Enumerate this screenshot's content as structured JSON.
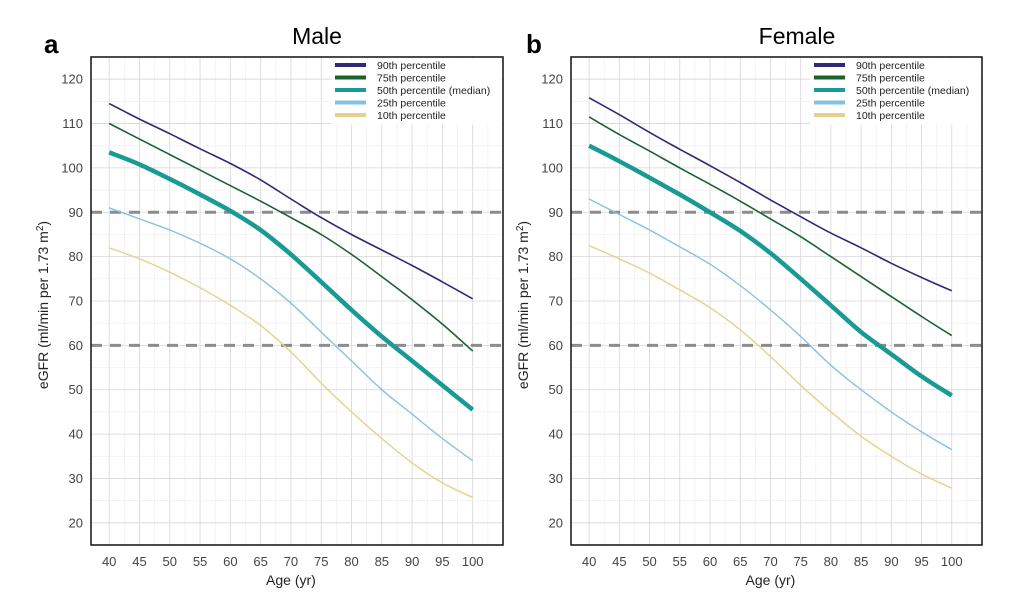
{
  "chart_data": [
    {
      "type": "line",
      "panel_letter": "a",
      "title": "Male",
      "xlabel": "Age (yr)",
      "ylabel": "eGFR (ml/min per 1.73 m²)",
      "ylabel_main": "eGFR (ml/min per 1.73 m",
      "ylabel_sup": "2",
      "ylabel_close": ")",
      "xlim": [
        37,
        105
      ],
      "ylim": [
        15,
        125
      ],
      "xticks": [
        40,
        45,
        50,
        55,
        60,
        65,
        70,
        75,
        80,
        85,
        90,
        95,
        100
      ],
      "yticks": [
        20,
        30,
        40,
        50,
        60,
        70,
        80,
        90,
        100,
        110,
        120
      ],
      "grid": true,
      "reference_lines": [
        90,
        60
      ],
      "legend_position": "top-right",
      "x": [
        40,
        45,
        50,
        55,
        60,
        65,
        70,
        75,
        80,
        85,
        90,
        95,
        100
      ],
      "series": [
        {
          "name": "90th percentile",
          "color": "#2e2a78",
          "values": [
            114.5,
            111,
            107.7,
            104.3,
            101,
            97.3,
            93,
            88.8,
            85,
            81.5,
            78,
            74.3,
            70.5
          ]
        },
        {
          "name": "75th percentile",
          "color": "#1a6230",
          "values": [
            110,
            106.5,
            103,
            99.5,
            96,
            92.5,
            88.8,
            85,
            80.5,
            75.5,
            70.3,
            64.8,
            58.7
          ]
        },
        {
          "name": "50th percentile (median)",
          "color": "#1a9a94",
          "values": [
            103.5,
            100.8,
            97.5,
            94,
            90.3,
            86,
            80.5,
            74.3,
            68,
            62,
            56.5,
            51,
            45.5
          ]
        },
        {
          "name": "25th percentile",
          "color": "#86c1e5",
          "values": [
            91,
            88.5,
            86,
            83,
            79.5,
            75,
            69.5,
            63,
            56.5,
            50,
            44.5,
            39,
            34
          ]
        },
        {
          "name": "10th percentile",
          "color": "#e8cf8a",
          "values": [
            82,
            79.5,
            76.5,
            73,
            69,
            64.5,
            58.5,
            51.5,
            45,
            39,
            33.5,
            29,
            25.7
          ]
        }
      ]
    },
    {
      "type": "line",
      "panel_letter": "b",
      "title": "Female",
      "xlabel": "Age (yr)",
      "ylabel": "eGFR (ml/min per 1.73 m²)",
      "ylabel_main": "eGFR (ml/min per 1.73 m",
      "ylabel_sup": "2",
      "ylabel_close": ")",
      "xlim": [
        37,
        105
      ],
      "ylim": [
        15,
        125
      ],
      "xticks": [
        40,
        45,
        50,
        55,
        60,
        65,
        70,
        75,
        80,
        85,
        90,
        95,
        100
      ],
      "yticks": [
        20,
        30,
        40,
        50,
        60,
        70,
        80,
        90,
        100,
        110,
        120
      ],
      "grid": true,
      "reference_lines": [
        90,
        60
      ],
      "legend_position": "top-right",
      "x": [
        40,
        45,
        50,
        55,
        60,
        65,
        70,
        75,
        80,
        85,
        90,
        95,
        100
      ],
      "series": [
        {
          "name": "90th percentile",
          "color": "#2e2a78",
          "values": [
            115.8,
            112,
            108,
            104.2,
            100.5,
            96.7,
            92.8,
            89,
            85.3,
            82,
            78.5,
            75.3,
            72.3
          ]
        },
        {
          "name": "75th percentile",
          "color": "#1a6230",
          "values": [
            111.5,
            107.5,
            103.8,
            100,
            96.3,
            92.5,
            88.5,
            84.5,
            80,
            75.5,
            71,
            66.5,
            62.2
          ]
        },
        {
          "name": "50th percentile (median)",
          "color": "#1a9a94",
          "values": [
            105,
            101.5,
            97.8,
            94,
            90,
            85.8,
            80.8,
            75,
            69,
            63,
            58,
            53,
            48.7
          ]
        },
        {
          "name": "25th percentile",
          "color": "#86c1e5",
          "values": [
            93,
            89.5,
            86,
            82.2,
            78.3,
            73.5,
            68,
            62,
            55.5,
            50,
            45,
            40.5,
            36.5
          ]
        },
        {
          "name": "10th percentile",
          "color": "#e8cf8a",
          "values": [
            82.5,
            79.5,
            76.3,
            72.5,
            68.5,
            63.5,
            57.5,
            51,
            45,
            39.5,
            35,
            31,
            27.8
          ]
        }
      ]
    }
  ]
}
